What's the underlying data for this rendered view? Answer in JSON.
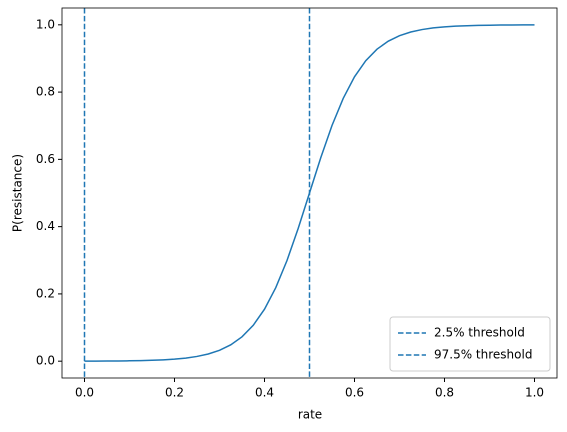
{
  "chart_data": {
    "type": "line",
    "xlabel": "rate",
    "ylabel": "P(resistance)",
    "x": [
      0,
      0.025,
      0.05,
      0.075,
      0.1,
      0.125,
      0.15,
      0.175,
      0.2,
      0.225,
      0.25,
      0.275,
      0.3,
      0.325,
      0.35,
      0.375,
      0.4,
      0.425,
      0.45,
      0.475,
      0.5,
      0.525,
      0.55,
      0.575,
      0.6,
      0.625,
      0.65,
      0.675,
      0.7,
      0.725,
      0.75,
      0.775,
      0.8,
      0.825,
      0.85,
      0.875,
      0.9,
      0.925,
      0.95,
      0.975,
      1.0
    ],
    "series": [
      {
        "color": "#1f77b4",
        "values": [
          0.0002,
          0.0003,
          0.0005,
          0.0007,
          0.0011,
          0.0017,
          0.0026,
          0.004,
          0.0061,
          0.0092,
          0.0141,
          0.0214,
          0.0323,
          0.0486,
          0.0724,
          0.1067,
          0.1545,
          0.2184,
          0.2994,
          0.3953,
          0.5,
          0.6047,
          0.7006,
          0.7816,
          0.8455,
          0.8933,
          0.9276,
          0.9514,
          0.9677,
          0.9786,
          0.9859,
          0.9908,
          0.9939,
          0.996,
          0.9974,
          0.9983,
          0.9989,
          0.9993,
          0.9995,
          0.9997,
          0.9998
        ]
      }
    ],
    "vlines": [
      {
        "name": "2.5% threshold",
        "x": 0,
        "color": "#1f77b4"
      },
      {
        "name": "97.5% threshold",
        "x": 0.5,
        "color": "#1f77b4"
      }
    ],
    "xlim": [
      -0.05,
      1.05
    ],
    "ylim": [
      -0.05,
      1.05
    ],
    "xticks": [
      {
        "value": 0,
        "label": "0.0"
      },
      0.2,
      0.4,
      0.6,
      0.8,
      {
        "value": 1,
        "label": "1.0"
      }
    ],
    "yticks": [
      {
        "value": 0,
        "label": "0.0"
      },
      0.2,
      0.4,
      0.6,
      0.8,
      {
        "value": 1,
        "label": "1.0"
      }
    ],
    "legend": "lower right"
  }
}
